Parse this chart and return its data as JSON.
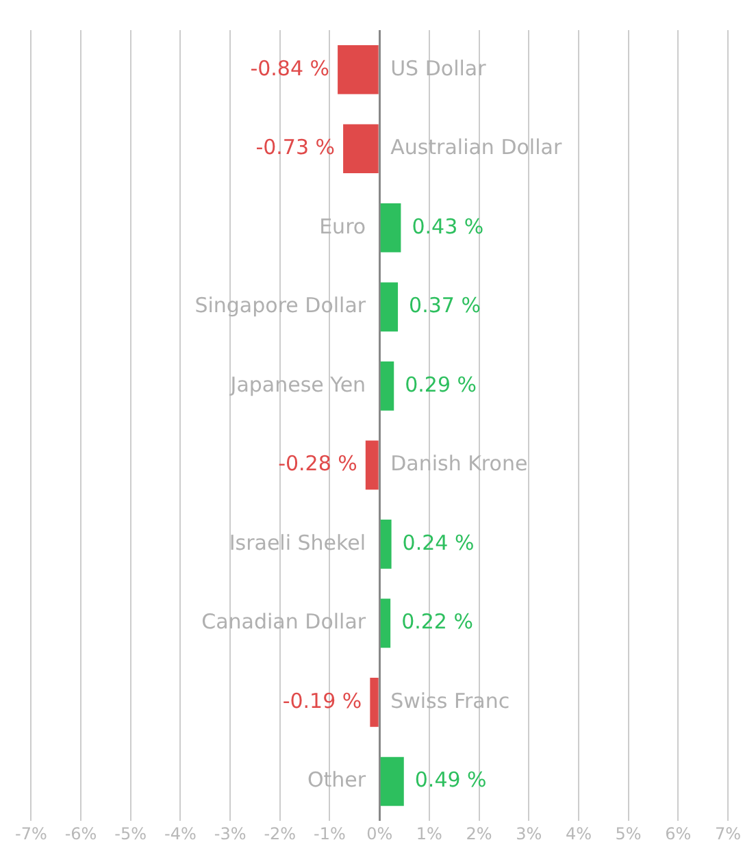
{
  "chart_data": {
    "type": "bar",
    "orientation": "horizontal",
    "categories": [
      "US Dollar",
      "Australian Dollar",
      "Euro",
      "Singapore Dollar",
      "Japanese Yen",
      "Danish Krone",
      "Israeli Shekel",
      "Canadian Dollar",
      "Swiss Franc",
      "Other"
    ],
    "values": [
      -0.84,
      -0.73,
      0.43,
      0.37,
      0.29,
      -0.28,
      0.24,
      0.22,
      -0.19,
      0.49
    ],
    "value_labels": [
      "-0.84 %",
      "-0.73 %",
      "0.43 %",
      "0.37 %",
      "0.29 %",
      "-0.28 %",
      "0.24 %",
      "0.22 %",
      "-0.19 %",
      "0.49 %"
    ],
    "colors": [
      "#e04a4a",
      "#e04a4a",
      "#2dbf5e",
      "#2dbf5e",
      "#2dbf5e",
      "#e04a4a",
      "#2dbf5e",
      "#2dbf5e",
      "#e04a4a",
      "#2dbf5e"
    ],
    "xlim": [
      -7,
      7
    ],
    "xticks": [
      {
        "value": -7,
        "label": "-7%"
      },
      {
        "value": -6,
        "label": "-6%"
      },
      {
        "value": -5,
        "label": "-5%"
      },
      {
        "value": -4,
        "label": "-4%"
      },
      {
        "value": -3,
        "label": "-3%"
      },
      {
        "value": -2,
        "label": "-2%"
      },
      {
        "value": -1,
        "label": "-1%"
      },
      {
        "value": 0,
        "label": "0%"
      },
      {
        "value": 1,
        "label": "1%"
      },
      {
        "value": 2,
        "label": "2%"
      },
      {
        "value": 3,
        "label": "3%"
      },
      {
        "value": 4,
        "label": "4%"
      },
      {
        "value": 5,
        "label": "5%"
      },
      {
        "value": 6,
        "label": "6%"
      },
      {
        "value": 7,
        "label": "7%"
      }
    ],
    "grid": "x"
  }
}
